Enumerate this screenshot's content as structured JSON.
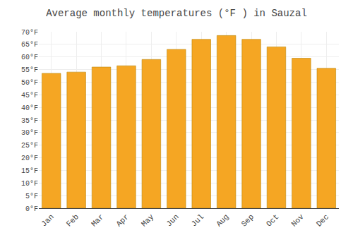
{
  "chart_data": {
    "type": "bar",
    "title": "Average monthly temperatures (°F ) in Sauzal",
    "categories": [
      "Jan",
      "Feb",
      "Mar",
      "Apr",
      "May",
      "Jun",
      "Jul",
      "Aug",
      "Sep",
      "Oct",
      "Nov",
      "Dec"
    ],
    "values": [
      53.5,
      54.0,
      56.0,
      56.5,
      59.0,
      63.0,
      67.0,
      68.5,
      67.0,
      64.0,
      59.5,
      55.5
    ],
    "color": "#F5A623",
    "ylim": [
      0,
      70
    ],
    "yticks": [
      {
        "value": 0,
        "label": "0°F"
      },
      {
        "value": 5,
        "label": "5°F"
      },
      {
        "value": 10,
        "label": "10°F"
      },
      {
        "value": 15,
        "label": "15°F"
      },
      {
        "value": 20,
        "label": "20°F"
      },
      {
        "value": 25,
        "label": "25°F"
      },
      {
        "value": 30,
        "label": "30°F"
      },
      {
        "value": 35,
        "label": "35°F"
      },
      {
        "value": 40,
        "label": "40°F"
      },
      {
        "value": 45,
        "label": "45°F"
      },
      {
        "value": 50,
        "label": "50°F"
      },
      {
        "value": 55,
        "label": "55°F"
      },
      {
        "value": 60,
        "label": "60°F"
      },
      {
        "value": 65,
        "label": "65°F"
      },
      {
        "value": 70,
        "label": "70°F"
      }
    ],
    "grid": true
  }
}
